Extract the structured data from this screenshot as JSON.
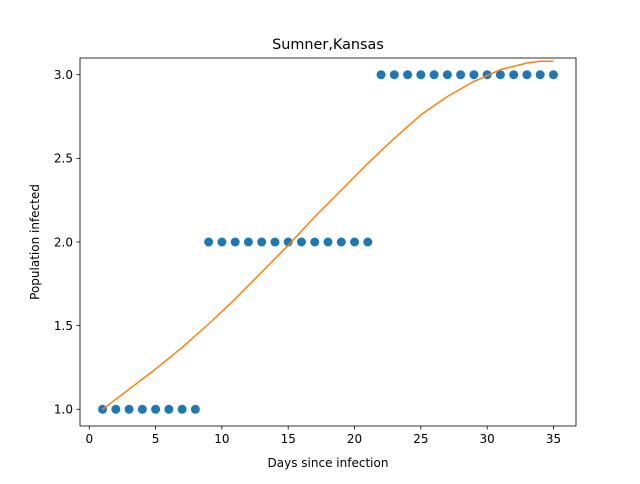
{
  "chart_data": {
    "type": "scatter",
    "title": "Sumner,Kansas",
    "xlabel": "Days since infection",
    "ylabel": "Population infected",
    "xlim": [
      -0.7,
      36.7
    ],
    "ylim": [
      0.9,
      3.1
    ],
    "xticks": [
      0,
      5,
      10,
      15,
      20,
      25,
      30,
      35
    ],
    "xtick_labels": [
      "0",
      "5",
      "10",
      "15",
      "20",
      "25",
      "30",
      "35"
    ],
    "yticks": [
      1.0,
      1.5,
      2.0,
      2.5,
      3.0
    ],
    "ytick_labels": [
      "1.0",
      "1.5",
      "2.0",
      "2.5",
      "3.0"
    ],
    "grid": false,
    "series": [
      {
        "type": "scatter",
        "color": "#1f77b4",
        "x": [
          1,
          2,
          3,
          4,
          5,
          6,
          7,
          8,
          9,
          10,
          11,
          12,
          13,
          14,
          15,
          16,
          17,
          18,
          19,
          20,
          21,
          22,
          23,
          24,
          25,
          26,
          27,
          28,
          29,
          30,
          31,
          32,
          33,
          34,
          35
        ],
        "y": [
          1,
          1,
          1,
          1,
          1,
          1,
          1,
          1,
          2,
          2,
          2,
          2,
          2,
          2,
          2,
          2,
          2,
          2,
          2,
          2,
          2,
          3,
          3,
          3,
          3,
          3,
          3,
          3,
          3,
          3,
          3,
          3,
          3,
          3,
          3
        ]
      },
      {
        "type": "line",
        "color": "#ff7f0e",
        "x": [
          1,
          3,
          5,
          7,
          9,
          11,
          13,
          15,
          17,
          19,
          21,
          23,
          25,
          27,
          29,
          31,
          33,
          34,
          35
        ],
        "y": [
          1.0,
          1.12,
          1.24,
          1.37,
          1.51,
          1.66,
          1.82,
          1.98,
          2.15,
          2.31,
          2.47,
          2.62,
          2.76,
          2.87,
          2.96,
          3.03,
          3.07,
          3.08,
          3.08
        ]
      }
    ]
  }
}
